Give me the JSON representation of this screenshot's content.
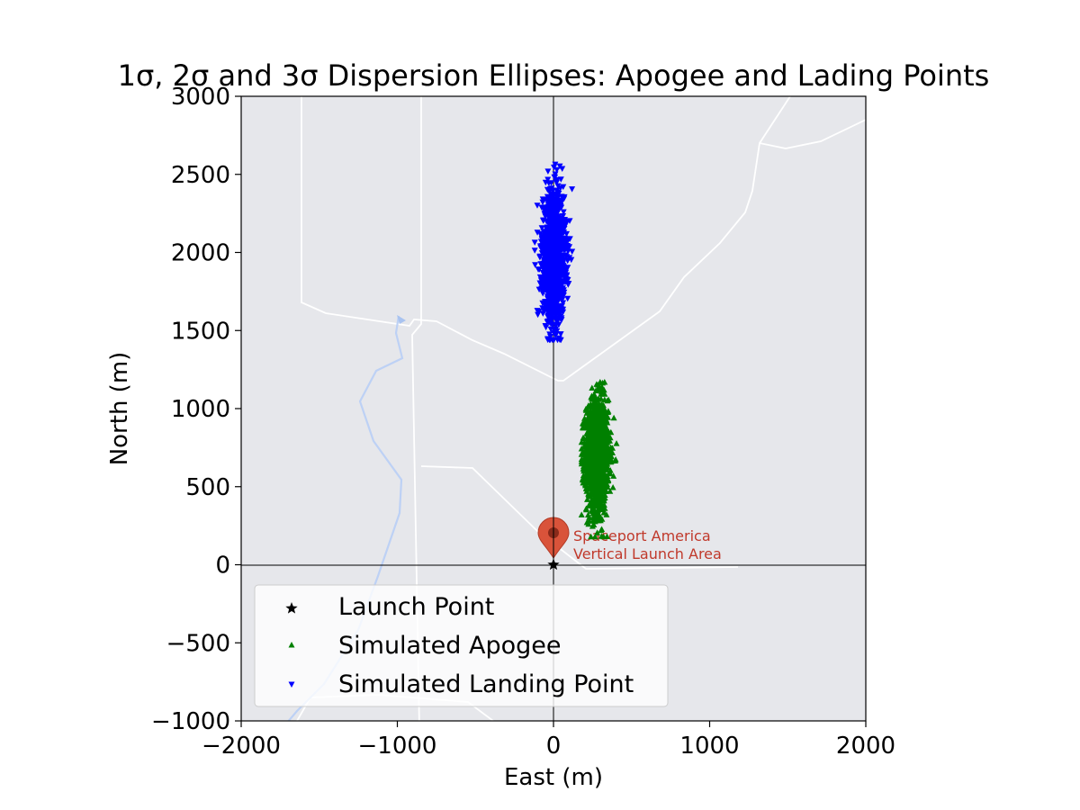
{
  "chart_data": {
    "type": "scatter",
    "title": "1σ, 2σ and 3σ Dispersion Ellipses: Apogee and Lading Points",
    "xlabel": "East (m)",
    "ylabel": "North (m)",
    "xlim": [
      -2000,
      2000
    ],
    "ylim": [
      -1000,
      3000
    ],
    "xticks": [
      -2000,
      -1000,
      0,
      1000,
      2000
    ],
    "yticks": [
      -1000,
      -500,
      0,
      500,
      1000,
      1500,
      2000,
      2500,
      3000
    ],
    "xtick_labels": [
      "−2000",
      "−1000",
      "0",
      "1000",
      "2000"
    ],
    "ytick_labels": [
      "−1000",
      "−500",
      "0",
      "500",
      "1000",
      "1500",
      "2000",
      "2500",
      "3000"
    ],
    "grid": false,
    "legend_position": "lower-left",
    "background": "map",
    "map_annotation": [
      "Spaceport America",
      "Vertical Launch Area"
    ],
    "series": [
      {
        "name": "Launch Point",
        "marker": "star",
        "color": "#000000",
        "points": [
          [
            0,
            0
          ]
        ]
      },
      {
        "name": "Simulated Apogee",
        "marker": "triangle-up",
        "color": "#008000",
        "center": [
          280,
          700
        ],
        "std": [
          40,
          180
        ],
        "range_x": [
          180,
          420
        ],
        "range_y": [
          180,
          1170
        ]
      },
      {
        "name": "Simulated Landing Point",
        "marker": "triangle-down",
        "color": "#0000ff",
        "center": [
          0,
          1970
        ],
        "std": [
          40,
          200
        ],
        "range_x": [
          -120,
          150
        ],
        "range_y": [
          1440,
          2590
        ]
      }
    ]
  }
}
